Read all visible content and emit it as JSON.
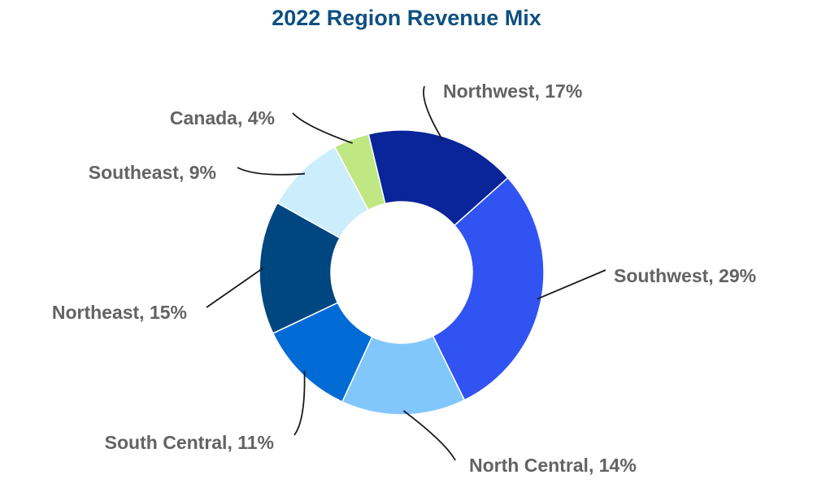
{
  "chart_data": {
    "type": "pie",
    "subtype": "donut",
    "title": "2022 Region Revenue Mix",
    "labels_show_percent": true,
    "legend": "none",
    "slices": [
      {
        "name": "Northwest",
        "label": "Northwest, 17%",
        "value": 17,
        "color": "#0A2499"
      },
      {
        "name": "Southwest",
        "label": "Southwest, 29%",
        "value": 29,
        "color": "#3053F2"
      },
      {
        "name": "North Central",
        "label": "North Central, 14%",
        "value": 14,
        "color": "#82C7FC"
      },
      {
        "name": "South Central",
        "label": "South Central, 11%",
        "value": 11,
        "color": "#006BD4"
      },
      {
        "name": "Northeast",
        "label": "Northeast, 15%",
        "value": 15,
        "color": "#004680"
      },
      {
        "name": "Southeast",
        "label": "Southeast, 9%",
        "value": 9,
        "color": "#CCEDFC"
      },
      {
        "name": "Canada",
        "label": "Canada, 4%",
        "value": 4,
        "color": "#BFE882"
      }
    ]
  },
  "colors": {
    "title": "#0D4F80",
    "label_text": "#636363",
    "leader_line": "#1a1a1a"
  }
}
